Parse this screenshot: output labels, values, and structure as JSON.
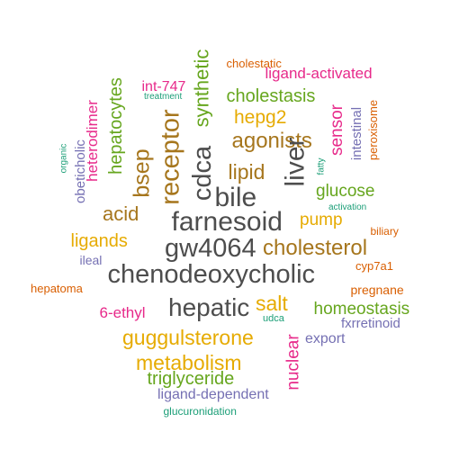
{
  "palette": {
    "gray": "#4d4d4d",
    "brown": "#a6761d",
    "green": "#66a61e",
    "magenta": "#e7298a",
    "purple": "#7570b3",
    "orange": "#d95f02",
    "gold": "#e6ab02",
    "teal": "#1b9e77"
  },
  "words": [
    {
      "text": "cholestatic",
      "size": 13,
      "color": "orange"
    },
    {
      "text": "ligand-activated",
      "size": 17,
      "color": "magenta"
    },
    {
      "text": "int-747",
      "size": 16,
      "color": "magenta"
    },
    {
      "text": "treatment",
      "size": 10,
      "color": "teal"
    },
    {
      "text": "cholestasis",
      "size": 20,
      "color": "green"
    },
    {
      "text": "hepg2",
      "size": 21,
      "color": "gold"
    },
    {
      "text": "agonists",
      "size": 24,
      "color": "brown"
    },
    {
      "text": "lipid",
      "size": 23,
      "color": "brown"
    },
    {
      "text": "glucose",
      "size": 19,
      "color": "green"
    },
    {
      "text": "bile",
      "size": 30,
      "color": "gray"
    },
    {
      "text": "acid",
      "size": 22,
      "color": "brown"
    },
    {
      "text": "farnesoid",
      "size": 30,
      "color": "gray"
    },
    {
      "text": "pump",
      "size": 19,
      "color": "gold"
    },
    {
      "text": "activation",
      "size": 10,
      "color": "teal"
    },
    {
      "text": "biliary",
      "size": 12,
      "color": "orange"
    },
    {
      "text": "ligands",
      "size": 20,
      "color": "gold"
    },
    {
      "text": "gw4064",
      "size": 29,
      "color": "gray"
    },
    {
      "text": "cholesterol",
      "size": 24,
      "color": "brown"
    },
    {
      "text": "ileal",
      "size": 14,
      "color": "purple"
    },
    {
      "text": "cyp7a1",
      "size": 13,
      "color": "orange"
    },
    {
      "text": "chenodeoxycholic",
      "size": 29,
      "color": "gray"
    },
    {
      "text": "hepatoma",
      "size": 13,
      "color": "orange"
    },
    {
      "text": "pregnane",
      "size": 14,
      "color": "orange"
    },
    {
      "text": "6-ethyl",
      "size": 17,
      "color": "magenta"
    },
    {
      "text": "hepatic",
      "size": 28,
      "color": "gray"
    },
    {
      "text": "salt",
      "size": 23,
      "color": "gold"
    },
    {
      "text": "homeostasis",
      "size": 19,
      "color": "green"
    },
    {
      "text": "udca",
      "size": 11,
      "color": "teal"
    },
    {
      "text": "fxrretinoid",
      "size": 15,
      "color": "purple"
    },
    {
      "text": "guggulsterone",
      "size": 23,
      "color": "gold"
    },
    {
      "text": "export",
      "size": 16,
      "color": "purple"
    },
    {
      "text": "metabolism",
      "size": 23,
      "color": "gold"
    },
    {
      "text": "triglyceride",
      "size": 20,
      "color": "green"
    },
    {
      "text": "ligand-dependent",
      "size": 16,
      "color": "purple"
    },
    {
      "text": "glucuronidation",
      "size": 12,
      "color": "teal"
    },
    {
      "text": "synthetic",
      "size": 22,
      "color": "green"
    },
    {
      "text": "cdca",
      "size": 29,
      "color": "gray"
    },
    {
      "text": "receptor",
      "size": 29,
      "color": "brown"
    },
    {
      "text": "bsep",
      "size": 25,
      "color": "brown"
    },
    {
      "text": "hepatocytes",
      "size": 20,
      "color": "green"
    },
    {
      "text": "heterodimer",
      "size": 17,
      "color": "magenta"
    },
    {
      "text": "obeticholic",
      "size": 15,
      "color": "purple"
    },
    {
      "text": "organic",
      "size": 10,
      "color": "teal"
    },
    {
      "text": "liver",
      "size": 30,
      "color": "gray"
    },
    {
      "text": "sensor",
      "size": 19,
      "color": "magenta"
    },
    {
      "text": "fatty",
      "size": 10,
      "color": "teal"
    },
    {
      "text": "intestinal",
      "size": 15,
      "color": "purple"
    },
    {
      "text": "peroxisome",
      "size": 13,
      "color": "orange"
    },
    {
      "text": "nuclear",
      "size": 19,
      "color": "magenta"
    }
  ]
}
